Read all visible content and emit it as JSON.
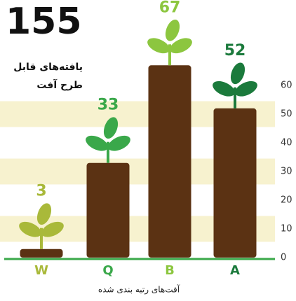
{
  "chart_data": {
    "type": "bar",
    "total": "155",
    "title_lines": [
      "یافته‌های قابل",
      "طرح آفت"
    ],
    "x_label": "آفت‌های رتبه بندی شده",
    "categories": [
      "W",
      "Q",
      "B",
      "A"
    ],
    "values": [
      3,
      33,
      67,
      52
    ],
    "color": "#5b3213",
    "colors": [
      "#a9b93a",
      "#3aa84a",
      "#8cc63f",
      "#1b7a3c"
    ],
    "ylim": [
      0,
      70
    ],
    "yticks": [
      0,
      10,
      20,
      30,
      40,
      50,
      60
    ],
    "grid": true
  }
}
